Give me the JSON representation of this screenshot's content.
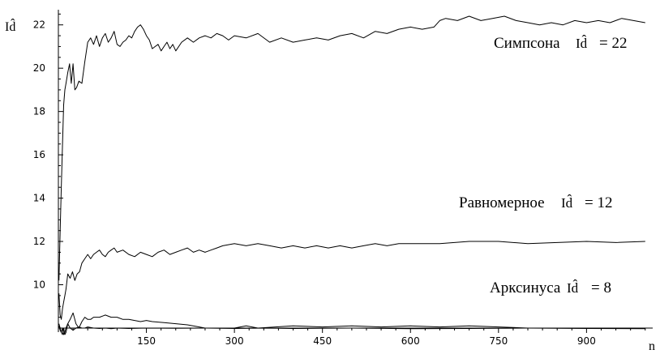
{
  "chart_data": {
    "type": "line",
    "title": "",
    "xlabel": "n",
    "ylabel": "Id̂",
    "xlim": [
      0,
      1010
    ],
    "ylim": [
      7.7,
      22.7
    ],
    "x_origin_y": 8,
    "xticks": [
      150,
      300,
      450,
      600,
      750,
      900
    ],
    "yticks": [
      10,
      12,
      14,
      16,
      18,
      20,
      22
    ],
    "grid": false,
    "annotations": [
      {
        "name": "Симпсона",
        "sym": "Id̂",
        "eq": "= 22"
      },
      {
        "name": "Равномерное",
        "sym": "Id̂",
        "eq": "= 12"
      },
      {
        "name": "Арксинуса",
        "sym": "Id̂",
        "eq": "= 8"
      }
    ],
    "series": [
      {
        "x": [
          1,
          3,
          5,
          7,
          9,
          11,
          13,
          16,
          19,
          22,
          25,
          28,
          31,
          35,
          40,
          45,
          50,
          55,
          60,
          65,
          70,
          75,
          80,
          85,
          90,
          95,
          100,
          105,
          110,
          115,
          120,
          125,
          130,
          135,
          140,
          145,
          150,
          155,
          160,
          165,
          170,
          175,
          180,
          185,
          190,
          195,
          200,
          210,
          220,
          230,
          240,
          250,
          260,
          270,
          280,
          290,
          300,
          320,
          340,
          360,
          380,
          400,
          420,
          440,
          460,
          480,
          500,
          520,
          540,
          560,
          580,
          600,
          620,
          640,
          650,
          660,
          680,
          700,
          720,
          740,
          760,
          780,
          800,
          820,
          840,
          860,
          880,
          900,
          920,
          940,
          960,
          980,
          1000
        ],
        "values": [
          10.2,
          12.5,
          14.5,
          16.5,
          18.3,
          19.0,
          19.3,
          19.8,
          20.2,
          19.3,
          20.2,
          19.0,
          19.1,
          19.4,
          19.3,
          20.3,
          21.2,
          21.4,
          21.1,
          21.5,
          21.0,
          21.4,
          21.6,
          21.2,
          21.4,
          21.7,
          21.1,
          21.0,
          21.2,
          21.3,
          21.5,
          21.4,
          21.7,
          21.9,
          22.0,
          21.8,
          21.5,
          21.3,
          20.9,
          21.0,
          21.1,
          20.8,
          21.0,
          21.2,
          20.9,
          21.1,
          20.8,
          21.2,
          21.4,
          21.2,
          21.4,
          21.5,
          21.4,
          21.6,
          21.5,
          21.3,
          21.5,
          21.4,
          21.6,
          21.2,
          21.4,
          21.2,
          21.3,
          21.4,
          21.3,
          21.5,
          21.6,
          21.4,
          21.7,
          21.6,
          21.8,
          21.9,
          21.8,
          21.9,
          22.2,
          22.3,
          22.2,
          22.4,
          22.2,
          22.3,
          22.4,
          22.2,
          22.1,
          22.0,
          22.1,
          22.0,
          22.2,
          22.1,
          22.2,
          22.1,
          22.3,
          22.2,
          22.1
        ]
      },
      {
        "x": [
          1,
          3,
          5,
          7,
          9,
          11,
          13,
          16,
          20,
          24,
          28,
          32,
          36,
          40,
          45,
          50,
          55,
          60,
          65,
          70,
          75,
          80,
          85,
          90,
          95,
          100,
          110,
          120,
          130,
          140,
          150,
          160,
          170,
          180,
          190,
          200,
          210,
          220,
          230,
          240,
          250,
          260,
          270,
          280,
          300,
          320,
          340,
          360,
          380,
          400,
          420,
          440,
          460,
          480,
          500,
          520,
          540,
          560,
          580,
          600,
          650,
          700,
          750,
          800,
          850,
          900,
          950,
          1000
        ],
        "values": [
          9.6,
          8.6,
          8.4,
          8.9,
          9.2,
          9.5,
          9.8,
          10.5,
          10.3,
          10.6,
          10.2,
          10.5,
          10.6,
          11.0,
          11.2,
          11.4,
          11.2,
          11.4,
          11.5,
          11.6,
          11.4,
          11.3,
          11.5,
          11.6,
          11.7,
          11.5,
          11.6,
          11.4,
          11.3,
          11.5,
          11.4,
          11.3,
          11.5,
          11.6,
          11.4,
          11.5,
          11.6,
          11.7,
          11.5,
          11.6,
          11.5,
          11.6,
          11.7,
          11.8,
          11.9,
          11.8,
          11.9,
          11.8,
          11.7,
          11.8,
          11.7,
          11.8,
          11.7,
          11.8,
          11.7,
          11.8,
          11.9,
          11.8,
          11.9,
          11.9,
          11.9,
          12.0,
          12.0,
          11.9,
          11.95,
          12.0,
          11.95,
          12.0
        ]
      },
      {
        "x": [
          1,
          3,
          5,
          7,
          9,
          11,
          13,
          16,
          20,
          25,
          30,
          35,
          40,
          45,
          50,
          55,
          60,
          70,
          80,
          90,
          100,
          110,
          120,
          130,
          140,
          150,
          160,
          180,
          200,
          220,
          240,
          250,
          260,
          300,
          320,
          340,
          400,
          450,
          500,
          550,
          600,
          650,
          700,
          750,
          800,
          900,
          1000
        ],
        "values": [
          8.1,
          7.9,
          7.8,
          7.7,
          8.0,
          7.7,
          7.8,
          8.2,
          8.4,
          8.7,
          8.2,
          8.0,
          8.3,
          8.5,
          8.4,
          8.4,
          8.5,
          8.5,
          8.6,
          8.5,
          8.5,
          8.4,
          8.4,
          8.35,
          8.3,
          8.35,
          8.3,
          8.25,
          8.2,
          8.15,
          8.05,
          8.0,
          8.0,
          8.0,
          8.1,
          8.0,
          8.1,
          8.05,
          8.1,
          8.05,
          8.1,
          8.05,
          8.1,
          8.05,
          8.0,
          8.0,
          8.0
        ]
      },
      {
        "x": [
          1,
          3,
          5,
          7,
          9,
          11,
          13,
          16,
          20,
          25,
          30,
          35,
          40,
          45,
          50,
          60,
          70,
          80,
          90,
          100,
          120,
          150,
          200,
          250,
          300,
          350,
          400,
          500,
          600,
          700,
          800,
          900,
          1000
        ],
        "values": [
          8.2,
          8.0,
          7.8,
          8.0,
          7.7,
          7.8,
          8.0,
          8.2,
          8.0,
          7.9,
          8.0,
          8.05,
          8.0,
          8.0,
          8.05,
          8.0,
          7.98,
          8.0,
          7.97,
          8.0,
          7.98,
          8.0,
          7.99,
          8.0,
          7.98,
          8.0,
          7.98,
          8.0,
          7.97,
          7.98,
          8.0,
          7.98,
          7.97
        ]
      }
    ]
  }
}
